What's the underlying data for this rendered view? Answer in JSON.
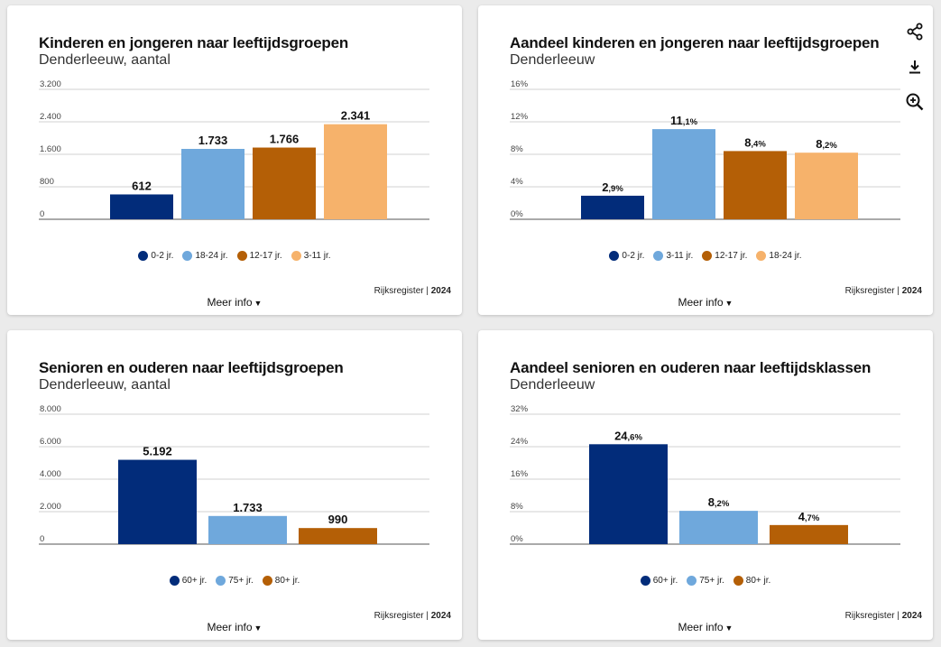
{
  "cards": [
    {
      "title": "Kinderen en jongeren naar leeftijdsgroepen",
      "subtitle": "Denderleeuw, aantal",
      "legend": [
        {
          "label": "0-2 jr.",
          "color": "#022c7a"
        },
        {
          "label": "18-24 jr.",
          "color": "#6fa8dc"
        },
        {
          "label": "12-17 jr.",
          "color": "#b45f06"
        },
        {
          "label": "3-11 jr.",
          "color": "#f6b26b"
        }
      ],
      "source": "Rijksregister",
      "year": "2024",
      "meer_info": "Meer info"
    },
    {
      "title": "Aandeel kinderen en jongeren naar leeftijdsgroepen",
      "subtitle": "Denderleeuw",
      "legend": [
        {
          "label": "0-2 jr.",
          "color": "#022c7a"
        },
        {
          "label": "3-11 jr.",
          "color": "#6fa8dc"
        },
        {
          "label": "12-17 jr.",
          "color": "#b45f06"
        },
        {
          "label": "18-24 jr.",
          "color": "#f6b26b"
        }
      ],
      "source": "Rijksregister",
      "year": "2024",
      "meer_info": "Meer info"
    },
    {
      "title": "Senioren en ouderen naar leeftijdsgroepen",
      "subtitle": "Denderleeuw, aantal",
      "legend": [
        {
          "label": "60+ jr.",
          "color": "#022c7a"
        },
        {
          "label": "75+ jr.",
          "color": "#6fa8dc"
        },
        {
          "label": "80+ jr.",
          "color": "#b45f06"
        }
      ],
      "source": "Rijksregister",
      "year": "2024",
      "meer_info": "Meer info"
    },
    {
      "title": "Aandeel senioren en ouderen naar leeftijdsklassen",
      "subtitle": "Denderleeuw",
      "legend": [
        {
          "label": "60+ jr.",
          "color": "#022c7a"
        },
        {
          "label": "75+ jr.",
          "color": "#6fa8dc"
        },
        {
          "label": "80+ jr.",
          "color": "#b45f06"
        }
      ],
      "source": "Rijksregister",
      "year": "2024",
      "meer_info": "Meer info"
    }
  ],
  "toolbar": {
    "icons": [
      "share-icon",
      "download-icon",
      "zoom-in-icon"
    ]
  },
  "chart_data": [
    {
      "type": "bar",
      "title": "Kinderen en jongeren naar leeftijdsgroepen",
      "subtitle": "Denderleeuw, aantal",
      "categories": [
        "0-2 jr.",
        "18-24 jr.",
        "12-17 jr.",
        "3-11 jr."
      ],
      "values": [
        612,
        1733,
        1766,
        2341
      ],
      "value_labels": [
        {
          "main": "612",
          "small": ""
        },
        {
          "main": "1.733",
          "small": ""
        },
        {
          "main": "1.766",
          "small": ""
        },
        {
          "main": "2.341",
          "small": ""
        }
      ],
      "colors": [
        "#022c7a",
        "#6fa8dc",
        "#b45f06",
        "#f6b26b"
      ],
      "ylim": [
        0,
        3200
      ],
      "ticks": [
        0,
        800,
        1600,
        2400,
        3200
      ],
      "tick_labels": [
        "0",
        "800",
        "1.600",
        "2.400",
        "3.200"
      ],
      "grid": true,
      "legend_position": "bottom"
    },
    {
      "type": "bar",
      "title": "Aandeel kinderen en jongeren naar leeftijdsgroepen",
      "subtitle": "Denderleeuw",
      "categories": [
        "0-2 jr.",
        "3-11 jr.",
        "12-17 jr.",
        "18-24 jr."
      ],
      "values": [
        2.9,
        11.1,
        8.4,
        8.2
      ],
      "value_labels": [
        {
          "main": "2",
          "small": ",9%"
        },
        {
          "main": "11",
          "small": ",1%"
        },
        {
          "main": "8",
          "small": ",4%"
        },
        {
          "main": "8",
          "small": ",2%"
        }
      ],
      "colors": [
        "#022c7a",
        "#6fa8dc",
        "#b45f06",
        "#f6b26b"
      ],
      "ylim": [
        0,
        16
      ],
      "ticks": [
        0,
        4,
        8,
        12,
        16
      ],
      "tick_labels": [
        "0%",
        "4%",
        "8%",
        "12%",
        "16%"
      ],
      "grid": true,
      "legend_position": "bottom"
    },
    {
      "type": "bar",
      "title": "Senioren en ouderen naar leeftijdsgroepen",
      "subtitle": "Denderleeuw, aantal",
      "categories": [
        "60+ jr.",
        "75+ jr.",
        "80+ jr."
      ],
      "values": [
        5192,
        1733,
        990
      ],
      "value_labels": [
        {
          "main": "5.192",
          "small": ""
        },
        {
          "main": "1.733",
          "small": ""
        },
        {
          "main": "990",
          "small": ""
        }
      ],
      "colors": [
        "#022c7a",
        "#6fa8dc",
        "#b45f06"
      ],
      "ylim": [
        0,
        8000
      ],
      "ticks": [
        0,
        2000,
        4000,
        6000,
        8000
      ],
      "tick_labels": [
        "0",
        "2.000",
        "4.000",
        "6.000",
        "8.000"
      ],
      "grid": true,
      "legend_position": "bottom"
    },
    {
      "type": "bar",
      "title": "Aandeel senioren en ouderen naar leeftijdsklassen",
      "subtitle": "Denderleeuw",
      "categories": [
        "60+ jr.",
        "75+ jr.",
        "80+ jr."
      ],
      "values": [
        24.6,
        8.2,
        4.7
      ],
      "value_labels": [
        {
          "main": "24",
          "small": ",6%"
        },
        {
          "main": "8",
          "small": ",2%"
        },
        {
          "main": "4",
          "small": ",7%"
        }
      ],
      "colors": [
        "#022c7a",
        "#6fa8dc",
        "#b45f06"
      ],
      "ylim": [
        0,
        32
      ],
      "ticks": [
        0,
        8,
        16,
        24,
        32
      ],
      "tick_labels": [
        "0%",
        "8%",
        "16%",
        "24%",
        "32%"
      ],
      "grid": true,
      "legend_position": "bottom"
    }
  ]
}
